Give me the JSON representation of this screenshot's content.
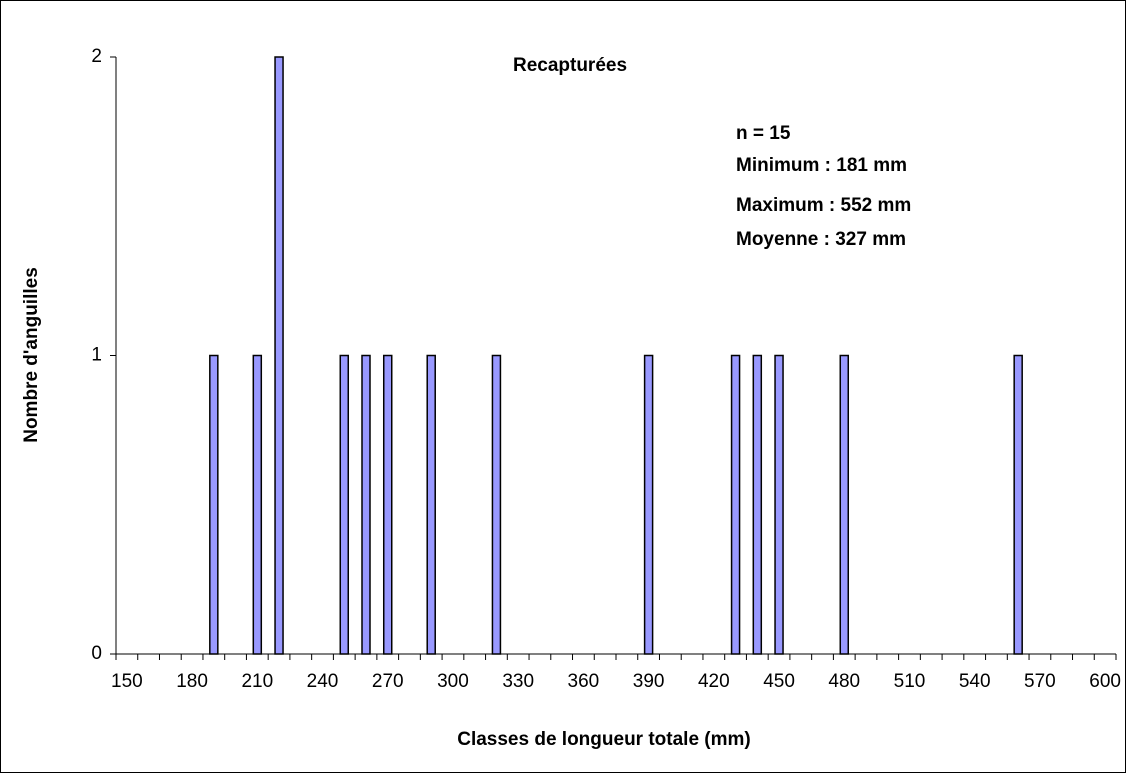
{
  "chart_data": {
    "type": "bar",
    "title": "Recapturées",
    "annotations": [
      "n = 15",
      "Minimum : 181 mm",
      "Maximum : 552 mm",
      "Moyenne : 327 mm"
    ],
    "x_label": "Classes de longueur totale (mm)",
    "y_label": "Nombre d'anguilles",
    "categories": [
      150,
      null,
      null,
      180,
      null,
      null,
      210,
      null,
      null,
      240,
      null,
      null,
      270,
      null,
      null,
      300,
      null,
      null,
      330,
      null,
      null,
      360,
      null,
      null,
      390,
      null,
      null,
      420,
      null,
      null,
      450,
      null,
      null,
      480,
      null,
      null,
      510,
      null,
      null,
      540,
      null,
      null,
      570,
      null,
      null,
      600
    ],
    "values": [
      0,
      0,
      0,
      0,
      1,
      0,
      1,
      2,
      0,
      0,
      1,
      1,
      1,
      0,
      1,
      0,
      0,
      1,
      0,
      0,
      0,
      0,
      0,
      0,
      1,
      0,
      0,
      0,
      1,
      1,
      1,
      0,
      0,
      1,
      0,
      0,
      0,
      0,
      0,
      0,
      0,
      1,
      0,
      0,
      0,
      0
    ],
    "color": "#9999ff",
    "ylim": [
      0,
      2
    ],
    "yticks": [
      0,
      1,
      2
    ],
    "grid": false
  }
}
